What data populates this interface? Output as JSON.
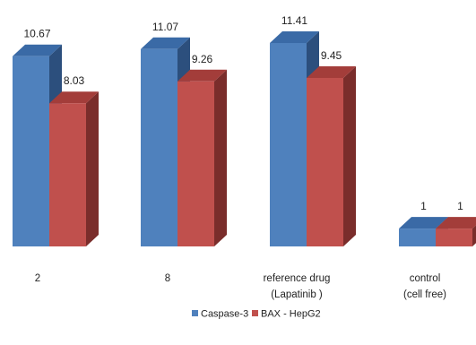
{
  "chart_data": {
    "type": "bar",
    "categories": [
      [
        "2"
      ],
      [
        "8"
      ],
      [
        "reference drug",
        "(Lapatinib )"
      ],
      [
        "control",
        "(cell free)"
      ]
    ],
    "series": [
      {
        "name": "Caspase-3",
        "values": [
          10.67,
          11.07,
          11.41,
          1
        ],
        "labels": [
          "10.67",
          "11.07",
          "11.41",
          "1"
        ]
      },
      {
        "name": "BAX - HepG2",
        "values": [
          8.03,
          9.26,
          9.45,
          1
        ],
        "labels": [
          "8.03",
          "9.26",
          "9.45",
          "1"
        ]
      }
    ],
    "ylim": [
      0,
      11.41
    ],
    "three_d": true,
    "grid": false,
    "legend_position": "bottom"
  },
  "colors": {
    "series": [
      {
        "front": "#4f81bd",
        "top": "#3a6aa6",
        "side": "#2c4f7d"
      },
      {
        "front": "#c0504d",
        "top": "#a33d3a",
        "side": "#7a2d2b"
      }
    ]
  }
}
